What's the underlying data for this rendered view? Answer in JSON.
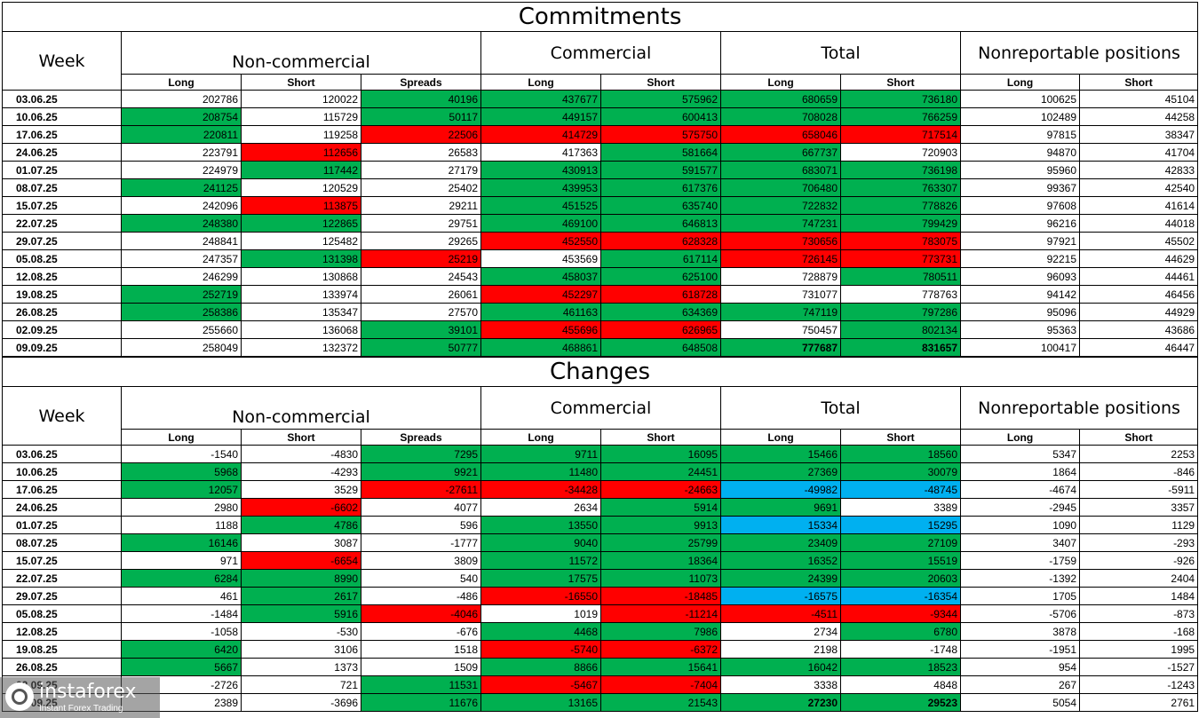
{
  "colors": {
    "green": "#00b050",
    "red": "#ff0000",
    "cyan": "#00b0f0"
  },
  "commitments": {
    "title": "Commitments",
    "groups": {
      "week": "Week",
      "noncommercial": "Non-commercial",
      "commercial": "Commercial",
      "total": "Total",
      "nonreportable": "Nonreportable positions"
    },
    "subheaders": [
      "Long",
      "Short",
      "Spreads",
      "Long",
      "Short",
      "Long",
      "Short",
      "Long",
      "Short"
    ],
    "rows": [
      {
        "week": "03.06.25",
        "cells": [
          {
            "v": "202786"
          },
          {
            "v": "120022"
          },
          {
            "v": "40196",
            "c": "g"
          },
          {
            "v": "437677",
            "c": "g"
          },
          {
            "v": "575962",
            "c": "g"
          },
          {
            "v": "680659",
            "c": "g"
          },
          {
            "v": "736180",
            "c": "g"
          },
          {
            "v": "100625"
          },
          {
            "v": "45104"
          }
        ]
      },
      {
        "week": "10.06.25",
        "cells": [
          {
            "v": "208754",
            "c": "g"
          },
          {
            "v": "115729"
          },
          {
            "v": "50117",
            "c": "g"
          },
          {
            "v": "449157",
            "c": "g"
          },
          {
            "v": "600413",
            "c": "g"
          },
          {
            "v": "708028",
            "c": "g"
          },
          {
            "v": "766259",
            "c": "g"
          },
          {
            "v": "102489"
          },
          {
            "v": "44258"
          }
        ]
      },
      {
        "week": "17.06.25",
        "cells": [
          {
            "v": "220811",
            "c": "g"
          },
          {
            "v": "119258"
          },
          {
            "v": "22506",
            "c": "r"
          },
          {
            "v": "414729",
            "c": "r"
          },
          {
            "v": "575750",
            "c": "r"
          },
          {
            "v": "658046",
            "c": "r"
          },
          {
            "v": "717514",
            "c": "r"
          },
          {
            "v": "97815"
          },
          {
            "v": "38347"
          }
        ]
      },
      {
        "week": "24.06.25",
        "cells": [
          {
            "v": "223791"
          },
          {
            "v": "112656",
            "c": "r"
          },
          {
            "v": "26583"
          },
          {
            "v": "417363"
          },
          {
            "v": "581664",
            "c": "g"
          },
          {
            "v": "667737",
            "c": "g"
          },
          {
            "v": "720903"
          },
          {
            "v": "94870"
          },
          {
            "v": "41704"
          }
        ]
      },
      {
        "week": "01.07.25",
        "cells": [
          {
            "v": "224979"
          },
          {
            "v": "117442",
            "c": "g"
          },
          {
            "v": "27179"
          },
          {
            "v": "430913",
            "c": "g"
          },
          {
            "v": "591577",
            "c": "g"
          },
          {
            "v": "683071",
            "c": "g"
          },
          {
            "v": "736198",
            "c": "g"
          },
          {
            "v": "95960"
          },
          {
            "v": "42833"
          }
        ]
      },
      {
        "week": "08.07.25",
        "cells": [
          {
            "v": "241125",
            "c": "g"
          },
          {
            "v": "120529"
          },
          {
            "v": "25402"
          },
          {
            "v": "439953",
            "c": "g"
          },
          {
            "v": "617376",
            "c": "g"
          },
          {
            "v": "706480",
            "c": "g"
          },
          {
            "v": "763307",
            "c": "g"
          },
          {
            "v": "99367"
          },
          {
            "v": "42540"
          }
        ]
      },
      {
        "week": "15.07.25",
        "cells": [
          {
            "v": "242096"
          },
          {
            "v": "113875",
            "c": "r"
          },
          {
            "v": "29211"
          },
          {
            "v": "451525",
            "c": "g"
          },
          {
            "v": "635740",
            "c": "g"
          },
          {
            "v": "722832",
            "c": "g"
          },
          {
            "v": "778826",
            "c": "g"
          },
          {
            "v": "97608"
          },
          {
            "v": "41614"
          }
        ]
      },
      {
        "week": "22.07.25",
        "cells": [
          {
            "v": "248380",
            "c": "g"
          },
          {
            "v": "122865",
            "c": "g"
          },
          {
            "v": "29751"
          },
          {
            "v": "469100",
            "c": "g"
          },
          {
            "v": "646813",
            "c": "g"
          },
          {
            "v": "747231",
            "c": "g"
          },
          {
            "v": "799429",
            "c": "g"
          },
          {
            "v": "96216"
          },
          {
            "v": "44018"
          }
        ]
      },
      {
        "week": "29.07.25",
        "cells": [
          {
            "v": "248841"
          },
          {
            "v": "125482"
          },
          {
            "v": "29265"
          },
          {
            "v": "452550",
            "c": "r"
          },
          {
            "v": "628328",
            "c": "r"
          },
          {
            "v": "730656",
            "c": "r"
          },
          {
            "v": "783075",
            "c": "r"
          },
          {
            "v": "97921"
          },
          {
            "v": "45502"
          }
        ]
      },
      {
        "week": "05.08.25",
        "cells": [
          {
            "v": "247357"
          },
          {
            "v": "131398",
            "c": "g"
          },
          {
            "v": "25219",
            "c": "r"
          },
          {
            "v": "453569"
          },
          {
            "v": "617114",
            "c": "g"
          },
          {
            "v": "726145",
            "c": "r"
          },
          {
            "v": "773731",
            "c": "r"
          },
          {
            "v": "92215"
          },
          {
            "v": "44629"
          }
        ]
      },
      {
        "week": "12.08.25",
        "cells": [
          {
            "v": "246299"
          },
          {
            "v": "130868"
          },
          {
            "v": "24543"
          },
          {
            "v": "458037",
            "c": "g"
          },
          {
            "v": "625100",
            "c": "g"
          },
          {
            "v": "728879"
          },
          {
            "v": "780511",
            "c": "g"
          },
          {
            "v": "96093"
          },
          {
            "v": "44461"
          }
        ]
      },
      {
        "week": "19.08.25",
        "cells": [
          {
            "v": "252719",
            "c": "g"
          },
          {
            "v": "133974"
          },
          {
            "v": "26061"
          },
          {
            "v": "452297",
            "c": "r"
          },
          {
            "v": "618728",
            "c": "r"
          },
          {
            "v": "731077"
          },
          {
            "v": "778763"
          },
          {
            "v": "94142"
          },
          {
            "v": "46456"
          }
        ]
      },
      {
        "week": "26.08.25",
        "cells": [
          {
            "v": "258386",
            "c": "g"
          },
          {
            "v": "135347"
          },
          {
            "v": "27570"
          },
          {
            "v": "461163",
            "c": "g"
          },
          {
            "v": "634369",
            "c": "g"
          },
          {
            "v": "747119",
            "c": "g"
          },
          {
            "v": "797286",
            "c": "g"
          },
          {
            "v": "95096"
          },
          {
            "v": "44929"
          }
        ]
      },
      {
        "week": "02.09.25",
        "cells": [
          {
            "v": "255660"
          },
          {
            "v": "136068"
          },
          {
            "v": "39101",
            "c": "g"
          },
          {
            "v": "455696",
            "c": "r"
          },
          {
            "v": "626965",
            "c": "r"
          },
          {
            "v": "750457"
          },
          {
            "v": "802134",
            "c": "g"
          },
          {
            "v": "95363"
          },
          {
            "v": "43686"
          }
        ]
      },
      {
        "week": "09.09.25",
        "cells": [
          {
            "v": "258049"
          },
          {
            "v": "132372"
          },
          {
            "v": "50777",
            "c": "g"
          },
          {
            "v": "468861",
            "c": "g"
          },
          {
            "v": "648508",
            "c": "g"
          },
          {
            "v": "777687",
            "c": "g",
            "b": true
          },
          {
            "v": "831657",
            "c": "g",
            "b": true
          },
          {
            "v": "100417"
          },
          {
            "v": "46447"
          }
        ]
      }
    ]
  },
  "changes": {
    "title": "Changes",
    "groups": {
      "week": "Week",
      "noncommercial": "Non-commercial",
      "commercial": "Commercial",
      "total": "Total",
      "nonreportable": "Nonreportable positions"
    },
    "subheaders": [
      "Long",
      "Short",
      "Spreads",
      "Long",
      "Short",
      "Long",
      "Short",
      "Long",
      "Short"
    ],
    "rows": [
      {
        "week": "03.06.25",
        "cells": [
          {
            "v": "-1540"
          },
          {
            "v": "-4830"
          },
          {
            "v": "7295",
            "c": "g"
          },
          {
            "v": "9711",
            "c": "g"
          },
          {
            "v": "16095",
            "c": "g"
          },
          {
            "v": "15466",
            "c": "g"
          },
          {
            "v": "18560",
            "c": "g"
          },
          {
            "v": "5347"
          },
          {
            "v": "2253"
          }
        ]
      },
      {
        "week": "10.06.25",
        "cells": [
          {
            "v": "5968",
            "c": "g"
          },
          {
            "v": "-4293"
          },
          {
            "v": "9921",
            "c": "g"
          },
          {
            "v": "11480",
            "c": "g"
          },
          {
            "v": "24451",
            "c": "g"
          },
          {
            "v": "27369",
            "c": "g"
          },
          {
            "v": "30079",
            "c": "g"
          },
          {
            "v": "1864"
          },
          {
            "v": "-846"
          }
        ]
      },
      {
        "week": "17.06.25",
        "cells": [
          {
            "v": "12057",
            "c": "g"
          },
          {
            "v": "3529"
          },
          {
            "v": "-27611",
            "c": "r"
          },
          {
            "v": "-34428",
            "c": "r"
          },
          {
            "v": "-24663",
            "c": "r"
          },
          {
            "v": "-49982",
            "c": "c"
          },
          {
            "v": "-48745",
            "c": "c"
          },
          {
            "v": "-4674"
          },
          {
            "v": "-5911"
          }
        ]
      },
      {
        "week": "24.06.25",
        "cells": [
          {
            "v": "2980"
          },
          {
            "v": "-6602",
            "c": "r"
          },
          {
            "v": "4077"
          },
          {
            "v": "2634"
          },
          {
            "v": "5914",
            "c": "g"
          },
          {
            "v": "9691",
            "c": "g"
          },
          {
            "v": "3389"
          },
          {
            "v": "-2945"
          },
          {
            "v": "3357"
          }
        ]
      },
      {
        "week": "01.07.25",
        "cells": [
          {
            "v": "1188"
          },
          {
            "v": "4786",
            "c": "g"
          },
          {
            "v": "596"
          },
          {
            "v": "13550",
            "c": "g"
          },
          {
            "v": "9913",
            "c": "g"
          },
          {
            "v": "15334",
            "c": "c"
          },
          {
            "v": "15295",
            "c": "c"
          },
          {
            "v": "1090"
          },
          {
            "v": "1129"
          }
        ]
      },
      {
        "week": "08.07.25",
        "cells": [
          {
            "v": "16146",
            "c": "g"
          },
          {
            "v": "3087"
          },
          {
            "v": "-1777"
          },
          {
            "v": "9040",
            "c": "g"
          },
          {
            "v": "25799",
            "c": "g"
          },
          {
            "v": "23409",
            "c": "g"
          },
          {
            "v": "27109",
            "c": "g"
          },
          {
            "v": "3407"
          },
          {
            "v": "-293"
          }
        ]
      },
      {
        "week": "15.07.25",
        "cells": [
          {
            "v": "971"
          },
          {
            "v": "-6654",
            "c": "r"
          },
          {
            "v": "3809"
          },
          {
            "v": "11572",
            "c": "g"
          },
          {
            "v": "18364",
            "c": "g"
          },
          {
            "v": "16352",
            "c": "g"
          },
          {
            "v": "15519",
            "c": "g"
          },
          {
            "v": "-1759"
          },
          {
            "v": "-926"
          }
        ]
      },
      {
        "week": "22.07.25",
        "cells": [
          {
            "v": "6284",
            "c": "g"
          },
          {
            "v": "8990",
            "c": "g"
          },
          {
            "v": "540"
          },
          {
            "v": "17575",
            "c": "g"
          },
          {
            "v": "11073",
            "c": "g"
          },
          {
            "v": "24399",
            "c": "g"
          },
          {
            "v": "20603",
            "c": "g"
          },
          {
            "v": "-1392"
          },
          {
            "v": "2404"
          }
        ]
      },
      {
        "week": "29.07.25",
        "cells": [
          {
            "v": "461"
          },
          {
            "v": "2617",
            "c": "g"
          },
          {
            "v": "-486"
          },
          {
            "v": "-16550",
            "c": "r"
          },
          {
            "v": "-18485",
            "c": "r"
          },
          {
            "v": "-16575",
            "c": "c"
          },
          {
            "v": "-16354",
            "c": "c"
          },
          {
            "v": "1705"
          },
          {
            "v": "1484"
          }
        ]
      },
      {
        "week": "05.08.25",
        "cells": [
          {
            "v": "-1484"
          },
          {
            "v": "5916",
            "c": "g"
          },
          {
            "v": "-4046",
            "c": "r"
          },
          {
            "v": "1019"
          },
          {
            "v": "-11214",
            "c": "r"
          },
          {
            "v": "-4511",
            "c": "r"
          },
          {
            "v": "-9344",
            "c": "r"
          },
          {
            "v": "-5706"
          },
          {
            "v": "-873"
          }
        ]
      },
      {
        "week": "12.08.25",
        "cells": [
          {
            "v": "-1058"
          },
          {
            "v": "-530"
          },
          {
            "v": "-676"
          },
          {
            "v": "4468",
            "c": "g"
          },
          {
            "v": "7986",
            "c": "g"
          },
          {
            "v": "2734"
          },
          {
            "v": "6780",
            "c": "g"
          },
          {
            "v": "3878"
          },
          {
            "v": "-168"
          }
        ]
      },
      {
        "week": "19.08.25",
        "cells": [
          {
            "v": "6420",
            "c": "g"
          },
          {
            "v": "3106"
          },
          {
            "v": "1518"
          },
          {
            "v": "-5740",
            "c": "r"
          },
          {
            "v": "-6372",
            "c": "r"
          },
          {
            "v": "2198"
          },
          {
            "v": "-1748"
          },
          {
            "v": "-1951"
          },
          {
            "v": "1995"
          }
        ]
      },
      {
        "week": "26.08.25",
        "cells": [
          {
            "v": "5667",
            "c": "g"
          },
          {
            "v": "1373"
          },
          {
            "v": "1509"
          },
          {
            "v": "8866",
            "c": "g"
          },
          {
            "v": "15641",
            "c": "g"
          },
          {
            "v": "16042",
            "c": "g"
          },
          {
            "v": "18523",
            "c": "g"
          },
          {
            "v": "954"
          },
          {
            "v": "-1527"
          }
        ]
      },
      {
        "week": "02.09.25",
        "cells": [
          {
            "v": "-2726"
          },
          {
            "v": "721"
          },
          {
            "v": "11531",
            "c": "g"
          },
          {
            "v": "-5467",
            "c": "r"
          },
          {
            "v": "-7404",
            "c": "r"
          },
          {
            "v": "3338"
          },
          {
            "v": "4848"
          },
          {
            "v": "267"
          },
          {
            "v": "-1243"
          }
        ]
      },
      {
        "week": "09.09.25",
        "cells": [
          {
            "v": "2389"
          },
          {
            "v": "-3696"
          },
          {
            "v": "11676",
            "c": "g"
          },
          {
            "v": "13165",
            "c": "g"
          },
          {
            "v": "21543",
            "c": "g"
          },
          {
            "v": "27230",
            "c": "g",
            "b": true
          },
          {
            "v": "29523",
            "c": "g",
            "b": true
          },
          {
            "v": "5054"
          },
          {
            "v": "2761"
          }
        ]
      }
    ]
  },
  "watermark": {
    "name": "instaforex",
    "tagline": "Instant Forex Trading"
  }
}
